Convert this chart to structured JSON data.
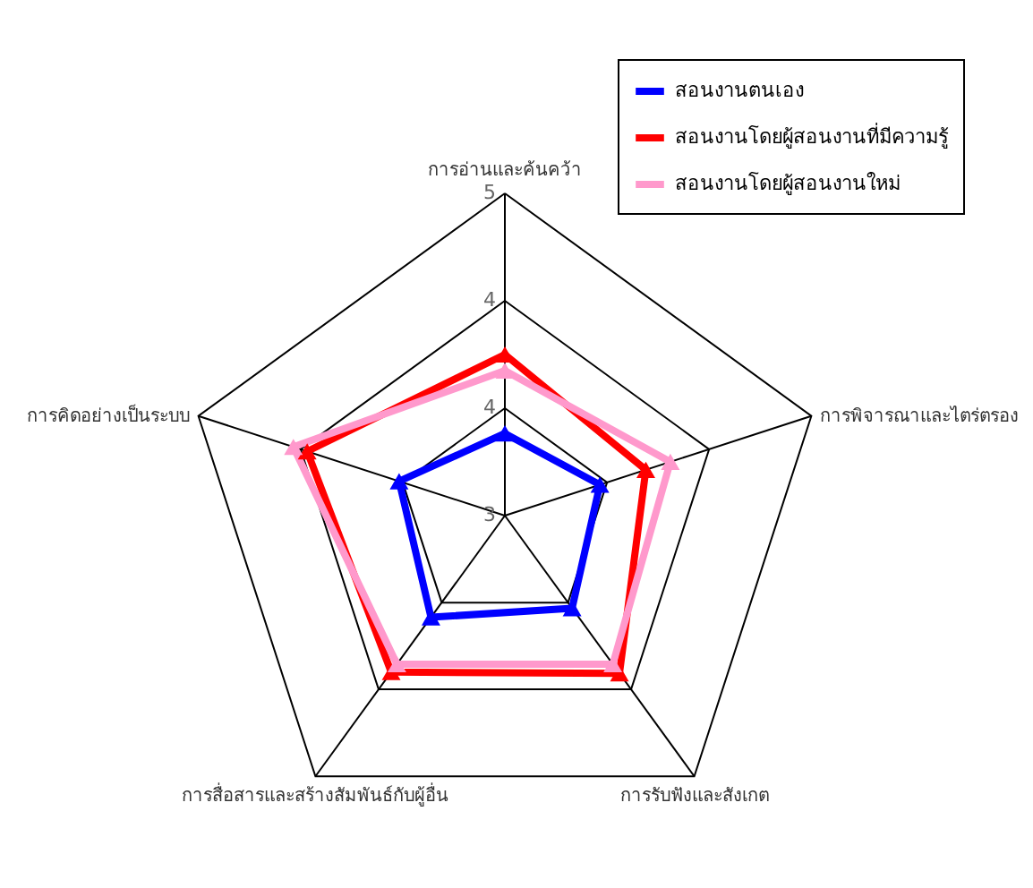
{
  "chart_data": {
    "type": "radar",
    "categories": [
      "การอ่านและค้นคว้า",
      "การพิจารณาและไตร่ตรอง",
      "การรับฟังและสังเกต",
      "การสื่อสารและสร้างสัมพันธ์กับผู้อื่น",
      "การคิดอย่างเป็นระบบ"
    ],
    "series": [
      {
        "name": "สอนงานตนเอง",
        "color": "#0000ff",
        "values": [
          3.51,
          3.62,
          3.71,
          3.78,
          3.69
        ]
      },
      {
        "name": "สอนงานโดยผู้สอนงานที่มีความรู้",
        "color": "#ff0000",
        "values": [
          4.0,
          3.92,
          4.21,
          4.2,
          4.29
        ]
      },
      {
        "name": "สอนงานโดยผู้สอนงานใหม่",
        "color": "#ff99cc",
        "values": [
          3.9,
          4.08,
          4.14,
          4.14,
          4.38
        ]
      }
    ],
    "ylim": [
      3,
      5
    ],
    "yticks": [
      3,
      {
        "value": 3.667,
        "label": "4"
      },
      {
        "value": 4.333,
        "label": "4"
      },
      5
    ],
    "grid": true,
    "legend": "top right",
    "marker": "triangle",
    "line_style": "solid"
  }
}
